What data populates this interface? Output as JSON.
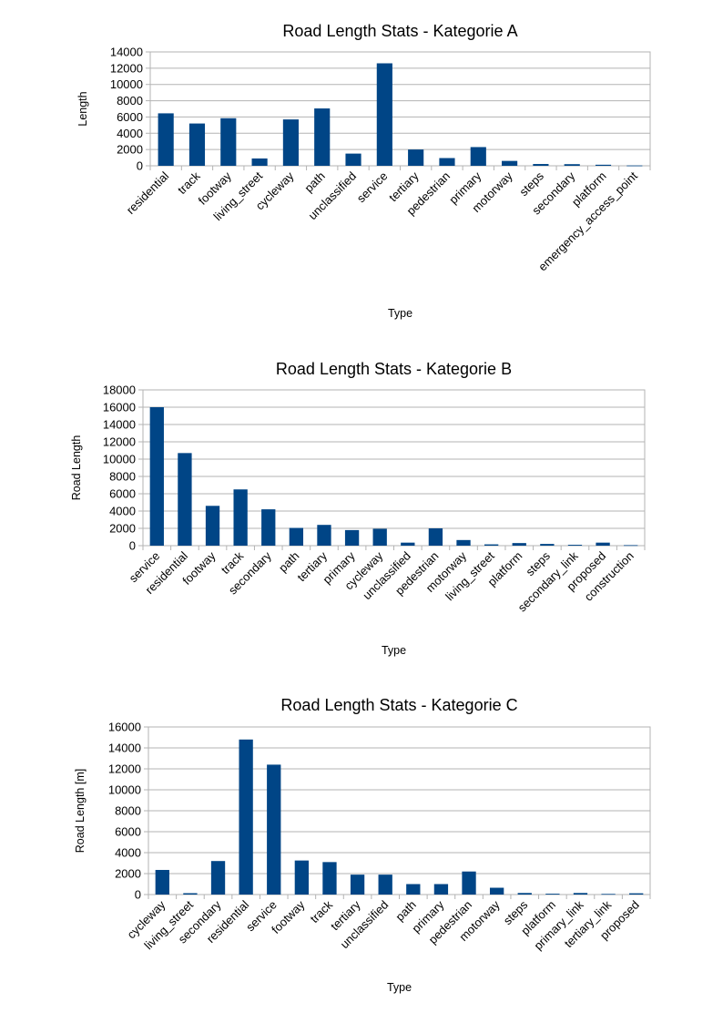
{
  "chart_data": [
    {
      "type": "bar",
      "title": "Road Length Stats - Kategorie A",
      "xlabel": "Type",
      "ylabel": "Length",
      "ylim": [
        0,
        14000
      ],
      "yticks": [
        0,
        2000,
        4000,
        6000,
        8000,
        10000,
        12000,
        14000
      ],
      "grid": true,
      "color": "#004586",
      "categories": [
        "residential",
        "track",
        "footway",
        "living_street",
        "cycleway",
        "path",
        "unclassified",
        "service",
        "tertiary",
        "pedestrian",
        "primary",
        "motorway",
        "steps",
        "secondary",
        "platform",
        "emergency_access_point"
      ],
      "values": [
        6450,
        5200,
        5850,
        900,
        5700,
        7050,
        1500,
        12600,
        2000,
        950,
        2300,
        600,
        220,
        200,
        130,
        40
      ]
    },
    {
      "type": "bar",
      "title": "Road Length Stats - Kategorie B",
      "xlabel": "Type",
      "ylabel": "Road Length",
      "ylim": [
        0,
        18000
      ],
      "yticks": [
        0,
        2000,
        4000,
        6000,
        8000,
        10000,
        12000,
        14000,
        16000,
        18000
      ],
      "grid": true,
      "color": "#004586",
      "categories": [
        "service",
        "residential",
        "footway",
        "track",
        "secondary",
        "path",
        "tertiary",
        "primary",
        "cycleway",
        "unclassified",
        "pedestrian",
        "motorway",
        "living_street",
        "platform",
        "steps",
        "secondary_link",
        "proposed",
        "construction"
      ],
      "values": [
        16000,
        10700,
        4600,
        6500,
        4200,
        2050,
        2400,
        1800,
        1950,
        350,
        2000,
        650,
        150,
        300,
        200,
        100,
        350,
        60
      ]
    },
    {
      "type": "bar",
      "title": "Road Length Stats - Kategorie C",
      "xlabel": "Type",
      "ylabel": "Road Length [m]",
      "ylim": [
        0,
        16000
      ],
      "yticks": [
        0,
        2000,
        4000,
        6000,
        8000,
        10000,
        12000,
        14000,
        16000
      ],
      "grid": true,
      "color": "#004586",
      "categories": [
        "cycleway",
        "living_street",
        "secondary",
        "residential",
        "service",
        "footway",
        "track",
        "tertiary",
        "unclassified",
        "path",
        "primary",
        "pedestrian",
        "motorway",
        "steps",
        "platform",
        "primary_link",
        "tertiary_link",
        "proposed"
      ],
      "values": [
        2350,
        130,
        3200,
        14800,
        12400,
        3250,
        3100,
        1900,
        1900,
        1000,
        1000,
        2200,
        650,
        150,
        80,
        150,
        60,
        120
      ]
    }
  ]
}
